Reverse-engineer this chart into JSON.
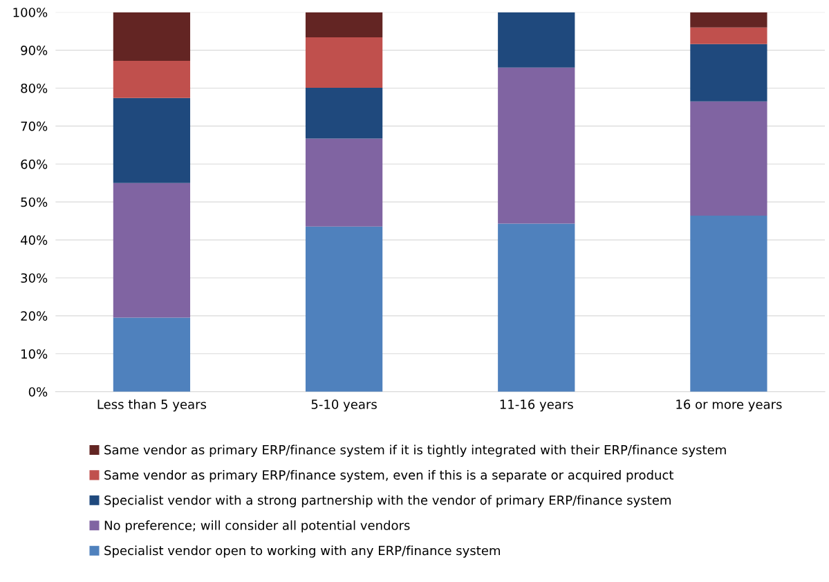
{
  "chart_data": {
    "type": "bar",
    "stacked": true,
    "categories": [
      "Less than 5 years",
      "5-10 years",
      "11-16 years",
      "16 or more years"
    ],
    "series": [
      {
        "name": "Specialist vendor open to working with any ERP/finance system",
        "color": "#4f81bd",
        "values": [
          19.5,
          43.5,
          44.3,
          46.4
        ]
      },
      {
        "name": "No preference; will consider all potential vendors",
        "color": "#8064a2",
        "values": [
          35.5,
          23.2,
          41.1,
          30.1
        ]
      },
      {
        "name": "Specialist vendor with a strong partnership with the vendor of primary ERP/finance system",
        "color": "#1f497d",
        "values": [
          22.4,
          13.4,
          14.6,
          15.1
        ]
      },
      {
        "name": "Same vendor as primary ERP/finance system, even if this is a separate or acquired product",
        "color": "#c0504d",
        "values": [
          9.8,
          13.3,
          0,
          4.4
        ]
      },
      {
        "name": "Same vendor as primary ERP/finance system if it is tightly integrated with their ERP/finance system",
        "color": "#632523",
        "values": [
          12.8,
          6.6,
          0,
          4.0
        ]
      }
    ],
    "ylim": [
      0,
      100
    ],
    "yticks": [
      {
        "value": 0,
        "label": "0%"
      },
      {
        "value": 10,
        "label": "10%"
      },
      {
        "value": 20,
        "label": "20%"
      },
      {
        "value": 30,
        "label": "30%"
      },
      {
        "value": 40,
        "label": "40%"
      },
      {
        "value": 50,
        "label": "50%"
      },
      {
        "value": 60,
        "label": "60%"
      },
      {
        "value": 70,
        "label": "70%"
      },
      {
        "value": 80,
        "label": "80%"
      },
      {
        "value": 90,
        "label": "90%"
      },
      {
        "value": 100,
        "label": "100%"
      }
    ],
    "grid": "y",
    "legend": "bottom"
  }
}
